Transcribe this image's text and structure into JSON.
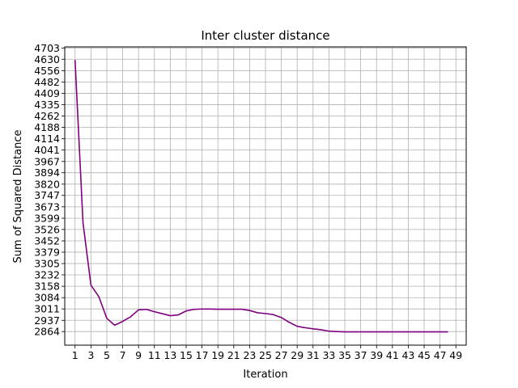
{
  "chart_data": {
    "type": "line",
    "title": "Inter cluster distance",
    "xlabel": "Iteration",
    "ylabel": "Sum of Squared Distance",
    "xlim": [
      -0.3,
      50.3
    ],
    "ylim": [
      2776,
      4710
    ],
    "xticks": [
      1,
      3,
      5,
      7,
      9,
      11,
      13,
      15,
      17,
      19,
      21,
      23,
      25,
      27,
      29,
      31,
      33,
      35,
      37,
      39,
      41,
      43,
      45,
      47,
      49
    ],
    "yticks": [
      2864,
      2937,
      3011,
      3084,
      3158,
      3232,
      3305,
      3379,
      3452,
      3526,
      3599,
      3673,
      3747,
      3820,
      3894,
      3967,
      4041,
      4114,
      4188,
      4262,
      4335,
      4409,
      4482,
      4556,
      4630,
      4703
    ],
    "grid": true,
    "series": [
      {
        "color": "#800080",
        "x": [
          1,
          2,
          3,
          4,
          5,
          6,
          7,
          8,
          9,
          10,
          11,
          12,
          13,
          14,
          15,
          16,
          17,
          18,
          19,
          20,
          21,
          22,
          23,
          24,
          25,
          26,
          27,
          28,
          29,
          30,
          31,
          32,
          33,
          34,
          35,
          36,
          37,
          38,
          39,
          40,
          41,
          42,
          43,
          44,
          45,
          46,
          47,
          48
        ],
        "values": [
          4625,
          3570,
          3165,
          3090,
          2950,
          2905,
          2930,
          2960,
          3005,
          3008,
          2993,
          2980,
          2967,
          2972,
          2998,
          3008,
          3010,
          3010,
          3009,
          3009,
          3009,
          3009,
          3001,
          2986,
          2981,
          2974,
          2955,
          2924,
          2898,
          2889,
          2882,
          2876,
          2867,
          2864,
          2862,
          2862,
          2862,
          2862,
          2862,
          2862,
          2862,
          2862,
          2862,
          2862,
          2862,
          2862,
          2862,
          2862
        ]
      }
    ]
  }
}
